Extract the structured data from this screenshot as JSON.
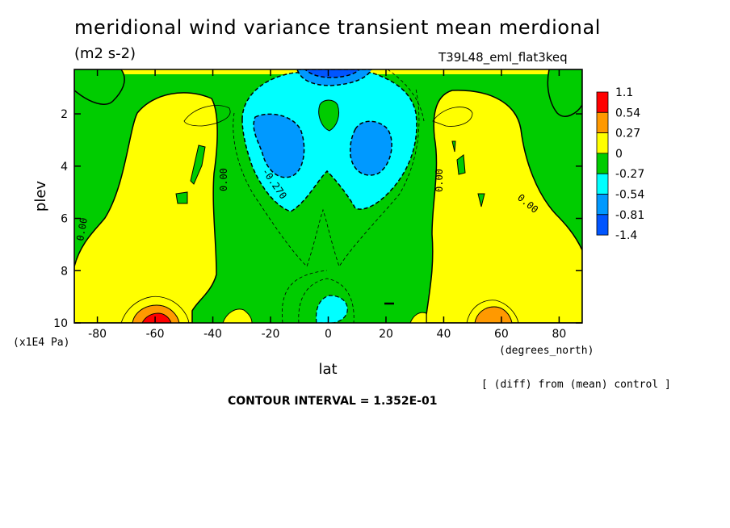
{
  "header": {
    "title": "meridional wind variance transient mean merdional",
    "units": "(m2 s-2)",
    "run": "T39L48_eml_flat3keq"
  },
  "footer": {
    "note": "[ (diff) from (mean) control ]",
    "contour_interval": "CONTOUR INTERVAL = 1.352E-01"
  },
  "chart_data": {
    "type": "heatmap",
    "title": "meridional wind variance transient mean merdional",
    "subtitle": "(m2 s-2)",
    "xlabel": "lat",
    "x_units": "(degrees_north)",
    "ylabel": "plev",
    "y_units": "(x1E4 Pa)",
    "xlim": [
      -88,
      88
    ],
    "ylim": [
      10,
      0.3
    ],
    "x_ticks": [
      -80,
      -60,
      -40,
      -20,
      0,
      20,
      40,
      60,
      80
    ],
    "y_ticks": [
      2,
      4,
      6,
      8,
      10
    ],
    "colorbar": {
      "labels": [
        "1.1",
        "0.54",
        "0.27",
        "0",
        "-0.27",
        "-0.54",
        "-0.81",
        "-1.4"
      ],
      "colors": [
        "#ff0000",
        "#ff9900",
        "#ffff00",
        "#00cc00",
        "#00ffff",
        "#0099ff",
        "#0055ff"
      ]
    },
    "contour_labels": [
      "0.00",
      "0.00",
      "0.00",
      "-0.270",
      "0.00",
      "0.00"
    ],
    "contour_interval": 0.1352
  }
}
